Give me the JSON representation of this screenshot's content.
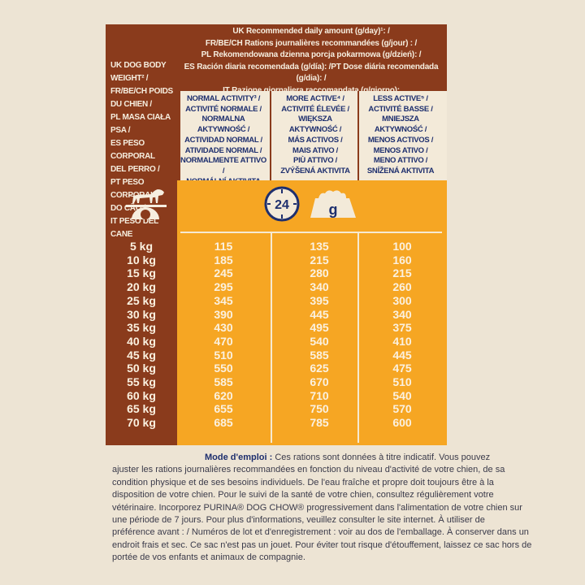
{
  "header": {
    "lines": [
      "UK Recommended daily amount (g/day)¹: /",
      "FR/BE/CH Rations journalières recommandées (g/jour) : /",
      "PL Rekomendowana dzienna porcja pokarmowa (g/dzień): /",
      "ES Ración diaria recomendada (g/día): /PT Dose diária recomendada (g/dia): /",
      "IT Razione giornaliera raccomandata (g/giorno):"
    ]
  },
  "weight_label": {
    "lines": [
      "UK DOG BODY",
      "WEIGHT² /",
      "FR/BE/CH POIDS",
      "DU CHIEN /",
      "PL MASA CIAŁA PSA /",
      "ES PESO CORPORAL",
      "DEL PERRO /",
      "PT PESO CORPORAL",
      "DO CÃO /",
      "IT PESO DEL CANE"
    ]
  },
  "activity_columns": [
    {
      "lines": [
        "NORMAL ACTIVITY³ /",
        "ACTIVITÉ NORMALE /",
        "NORMALNA",
        "AKTYWNOŚĆ /",
        "ACTIVIDAD NORMAL /",
        "ATIVIDADE NORMAL /",
        "NORMALMENTE ATTIVO /",
        "NORMÁLNÍ AKTIVITA"
      ]
    },
    {
      "lines": [
        "MORE ACTIVE⁴ /",
        "ACTIVITÉ ÉLEVÉE /",
        "WIĘKSZA",
        "AKTYWNOŚĆ /",
        "MÁS ACTIVOS /",
        "MAIS ATIVO /",
        "PIÙ ATTIVO /",
        "ZVÝŠENÁ AKTIVITA"
      ]
    },
    {
      "lines": [
        "LESS ACTIVE⁵ /",
        "ACTIVITÉ BASSE /",
        "MNIEJSZA",
        "AKTYWNOŚĆ /",
        "MENOS ACTIVOS /",
        "MENOS ATIVO /",
        "MENO ATTIVO /",
        "SNÍŽENÁ AKTIVITA"
      ]
    }
  ],
  "icons": {
    "clock_label": "24",
    "bowl_label": "g",
    "scale_icon": "dog-on-scale-icon"
  },
  "colors": {
    "brown": "#8a3b1c",
    "orange": "#f6a623",
    "cream": "#f3ead9",
    "navy": "#1e2f6e"
  },
  "table": {
    "rows": [
      {
        "weight": "5 kg",
        "normal": "115",
        "more": "135",
        "less": "100"
      },
      {
        "weight": "10 kg",
        "normal": "185",
        "more": "215",
        "less": "160"
      },
      {
        "weight": "15 kg",
        "normal": "245",
        "more": "280",
        "less": "215"
      },
      {
        "weight": "20 kg",
        "normal": "295",
        "more": "340",
        "less": "260"
      },
      {
        "weight": "25 kg",
        "normal": "345",
        "more": "395",
        "less": "300"
      },
      {
        "weight": "30 kg",
        "normal": "390",
        "more": "445",
        "less": "340"
      },
      {
        "weight": "35 kg",
        "normal": "430",
        "more": "495",
        "less": "375"
      },
      {
        "weight": "40 kg",
        "normal": "470",
        "more": "540",
        "less": "410"
      },
      {
        "weight": "45 kg",
        "normal": "510",
        "more": "585",
        "less": "445"
      },
      {
        "weight": "50 kg",
        "normal": "550",
        "more": "625",
        "less": "475"
      },
      {
        "weight": "55 kg",
        "normal": "585",
        "more": "670",
        "less": "510"
      },
      {
        "weight": "60 kg",
        "normal": "620",
        "more": "710",
        "less": "540"
      },
      {
        "weight": "65 kg",
        "normal": "655",
        "more": "750",
        "less": "570"
      },
      {
        "weight": "70 kg",
        "normal": "685",
        "more": "785",
        "less": "600"
      }
    ]
  },
  "instructions": {
    "title": "Mode d'emploi :",
    "first_line": " Ces rations sont données à titre indicatif. Vous pouvez",
    "lines": [
      "ajuster les rations journalières recommandées en fonction du niveau d'activité de votre chien, de sa",
      "condition physique et de ses besoins individuels. De l'eau fraîche et propre doit toujours être à la",
      "disposition de votre chien. Pour le suivi de la santé de votre chien, consultez régulièrement votre",
      "vétérinaire. Incorporez PURINA® DOG CHOW® progressivement dans l'alimentation de votre chien sur",
      "une période de 7 jours. Pour plus d'informations, veuillez consulter le site internet. À utiliser de",
      "préférence avant : / Numéros de lot et d'enregistrement : voir au dos de l'emballage. À conserver dans un",
      "endroit frais et sec. Ce sac n'est pas un jouet. Pour éviter tout risque d'étouffement, laissez ce sac hors de",
      "portée de vos enfants et animaux de compagnie."
    ]
  }
}
